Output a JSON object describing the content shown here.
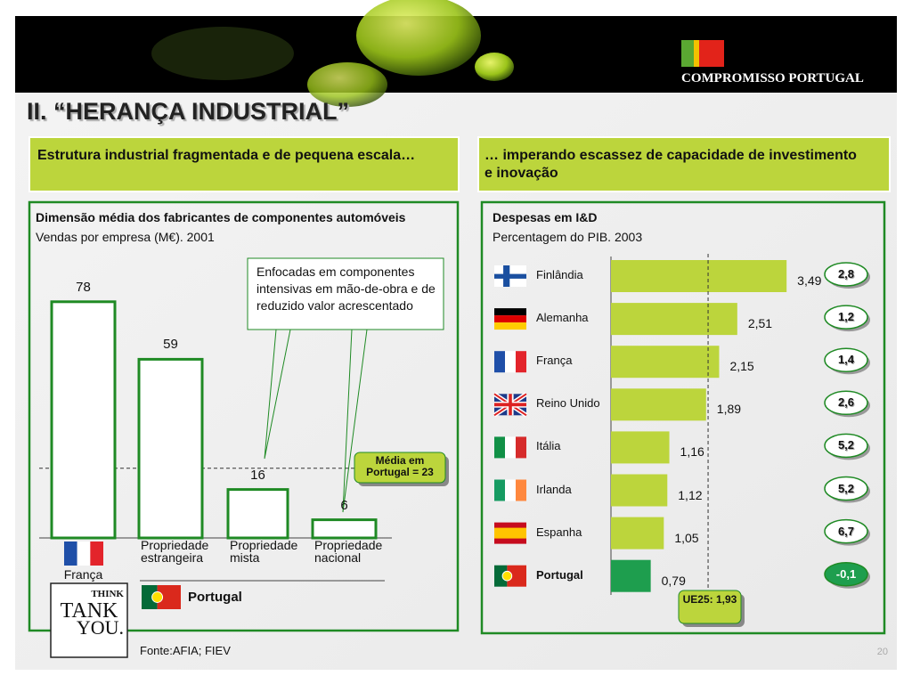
{
  "header": {
    "brand": "COMPROMISSO PORTUGAL",
    "title": "II. “HERANÇA INDUSTRIAL”"
  },
  "panels": [
    {
      "heading": "Estrutura industrial fragmentada e de pequena escala…"
    },
    {
      "heading": "… imperando escassez de capacidade de investimento e inovação"
    }
  ],
  "chart_data": [
    {
      "type": "bar",
      "title": "Dimensão média dos fabricantes de componentes automóveis",
      "subtitle": "Vendas por empresa (M€). 2001",
      "categories": [
        "França",
        "Propriedade estrangeira",
        "Propriedade mista",
        "Propriedade nacional"
      ],
      "values": [
        78,
        59,
        16,
        6
      ],
      "color": "#1f8a24",
      "group_label": "Portugal",
      "reference_value": 23,
      "reference_label": "Média em Portugal = 23",
      "annotation": "Enfocadas em componentes intensivas em mão-de-obra e de reduzido valor acrescentado"
    },
    {
      "type": "hbar",
      "title": "Despesas em I&D",
      "subtitle": "Percentagem do PIB. 2003",
      "categories": [
        "Finlândia",
        "Alemanha",
        "França",
        "Reino Unido",
        "Itália",
        "Irlanda",
        "Espanha",
        "Portugal"
      ],
      "values": [
        3.49,
        2.51,
        2.15,
        1.89,
        1.16,
        1.12,
        1.05,
        0.79
      ],
      "value_labels": [
        "3,49",
        "2,51",
        "2,15",
        "1,89",
        "1,16",
        "1,12",
        "1,05",
        "0,79"
      ],
      "colors": [
        "#bcd53c",
        "#bcd53c",
        "#bcd53c",
        "#bcd53c",
        "#bcd53c",
        "#bcd53c",
        "#bcd53c",
        "#1e9e4e"
      ],
      "growth": [
        2.8,
        1.2,
        1.4,
        2.6,
        5.2,
        5.2,
        6.7,
        -0.1
      ],
      "growth_labels": [
        "2,8",
        "1,2",
        "1,4",
        "2,6",
        "5,2",
        "5,2",
        "6,7",
        "-0,1"
      ],
      "reference_value": 1.93,
      "reference_label": "UE25: 1,93"
    }
  ],
  "logo": {
    "line1": "THINK",
    "line2": "TANK",
    "line3": "YOU."
  },
  "footer": {
    "source": "Fonte:AFIA; FIEV",
    "page": "20"
  }
}
